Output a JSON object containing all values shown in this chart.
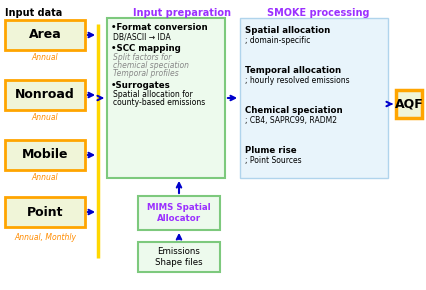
{
  "title_input": "Input data",
  "title_prep": "Input preparation",
  "title_smoke": "SMOKE processing",
  "title_prep_color": "#9B30FF",
  "title_smoke_color": "#9B30FF",
  "input_boxes": [
    "Area",
    "Nonroad",
    "Mobile",
    "Point"
  ],
  "input_labels": [
    "Annual",
    "Annual",
    "Annual",
    "Annual, Monthly"
  ],
  "input_box_border": "#FFA500",
  "input_box_fill": "#F0F5D8",
  "prep_box_border": "#7DC97D",
  "prep_box_fill": "#EDFAED",
  "smoke_box_border": "#B0D4EC",
  "smoke_box_fill": "#E8F4FB",
  "prep_text_title1": "•Format conversion",
  "prep_text_sub1": "DB/ASCII → IDA",
  "prep_text_title2": "•SCC mapping",
  "prep_text_sub2a": "Split factors for",
  "prep_text_sub2b": "chemical speciation",
  "prep_text_sub2c": "Temporal profiles",
  "prep_text_title3": "•Surrogates",
  "prep_text_sub3a": "Spatial allocation for",
  "prep_text_sub3b": "county-based emissions",
  "smoke_items": [
    [
      "Spatial allocation",
      "; domain-specific"
    ],
    [
      "Temporal allocation",
      "; hourly resolved emissions"
    ],
    [
      "Chemical speciation",
      "; CB4, SAPRC99, RADM2"
    ],
    [
      "Plume rise",
      "; Point Sources"
    ]
  ],
  "mims_text": "MIMS Spatial\nAllocator",
  "emissions_text": "Emissions\nShape files",
  "aqf_text": "AQF",
  "arrow_color": "#0000CC",
  "vline_color": "#FFD700",
  "bg_color": "#FFFFFF",
  "orange_label_color": "#FF8C00"
}
